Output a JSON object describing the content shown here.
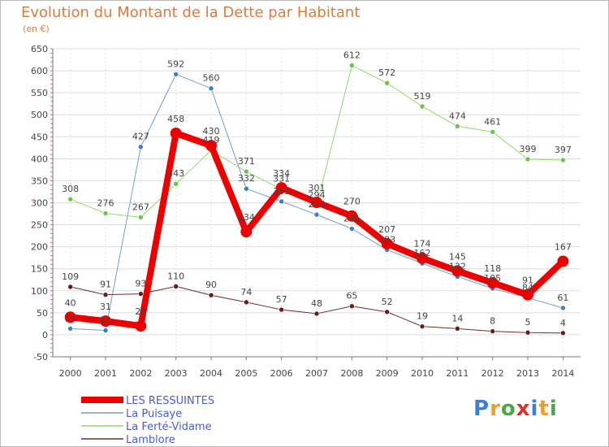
{
  "title": "Evolution du Montant de la Dette par Habitant",
  "subtitle": "(en €)",
  "logo": {
    "text": "Proxiti",
    "letters": [
      {
        "ch": "P",
        "color": "#3a7fd5"
      },
      {
        "ch": "r",
        "color": "#e6a02b"
      },
      {
        "ch": "o",
        "color": "#4aa74a"
      },
      {
        "ch": "x",
        "color": "#d9342b"
      },
      {
        "ch": "i",
        "color": "#3a7fd5"
      },
      {
        "ch": "t",
        "color": "#e6a02b"
      },
      {
        "ch": "i",
        "color": "#4aa74a"
      }
    ]
  },
  "chart_data": {
    "type": "line",
    "x": [
      "2000",
      "2001",
      "2002",
      "2003",
      "2004",
      "2005",
      "2006",
      "2007",
      "2008",
      "2009",
      "2010",
      "2011",
      "2012",
      "2013",
      "2014"
    ],
    "ylim": [
      -50,
      650
    ],
    "yticks": [
      -50,
      0,
      50,
      100,
      150,
      200,
      250,
      300,
      350,
      400,
      450,
      500,
      550,
      600,
      650
    ],
    "grid": true,
    "legend_position": "bottom-left",
    "series": [
      {
        "name": "LES RESSUINTES",
        "color": "#ee0000",
        "width": 8,
        "marker": 7,
        "values": [
          40,
          31,
          20,
          458,
          430,
          234,
          334,
          301,
          270,
          207,
          174,
          145,
          118,
          91,
          167
        ],
        "labels": [
          "40",
          "31",
          "20",
          "458",
          "430",
          "234",
          "334",
          "301",
          "270",
          "207",
          "174",
          "145",
          "118",
          "91",
          "167"
        ]
      },
      {
        "name": "La Puisaye",
        "color": "#6f9ccb",
        "width": 1,
        "marker": 3,
        "marker_color": "#3a7ec9",
        "values": [
          14,
          10,
          427,
          592,
          560,
          332,
          303,
          273,
          241,
          193,
          162,
          132,
          105,
          84,
          61
        ],
        "labels": [
          "14",
          "10",
          "427",
          "592",
          "560",
          "332",
          "303",
          "273",
          "241",
          "193",
          "162",
          "132",
          "105",
          "84",
          "61"
        ]
      },
      {
        "name": "La Ferté-Vidame",
        "color": "#92d96a",
        "width": 1,
        "marker": 3,
        "marker_color": "#6cc34a",
        "values": [
          308,
          276,
          267,
          343,
          419,
          371,
          331,
          294,
          612,
          572,
          519,
          474,
          461,
          399,
          397
        ],
        "labels": [
          "308",
          "276",
          "267",
          "343",
          "419",
          "371",
          "331",
          "294",
          "612",
          "572",
          "519",
          "474",
          "461",
          "399",
          "397"
        ]
      },
      {
        "name": "Lamblore",
        "color": "#6b2d2d",
        "width": 1,
        "marker": 3,
        "marker_color": "#6b1a1a",
        "values": [
          109,
          91,
          93,
          110,
          90,
          74,
          57,
          48,
          65,
          52,
          19,
          14,
          8,
          5,
          4
        ],
        "labels": [
          "109",
          "91",
          "93",
          "110",
          "90",
          "74",
          "57",
          "48",
          "65",
          "52",
          "19",
          "14",
          "8",
          "5",
          "4"
        ]
      }
    ]
  }
}
